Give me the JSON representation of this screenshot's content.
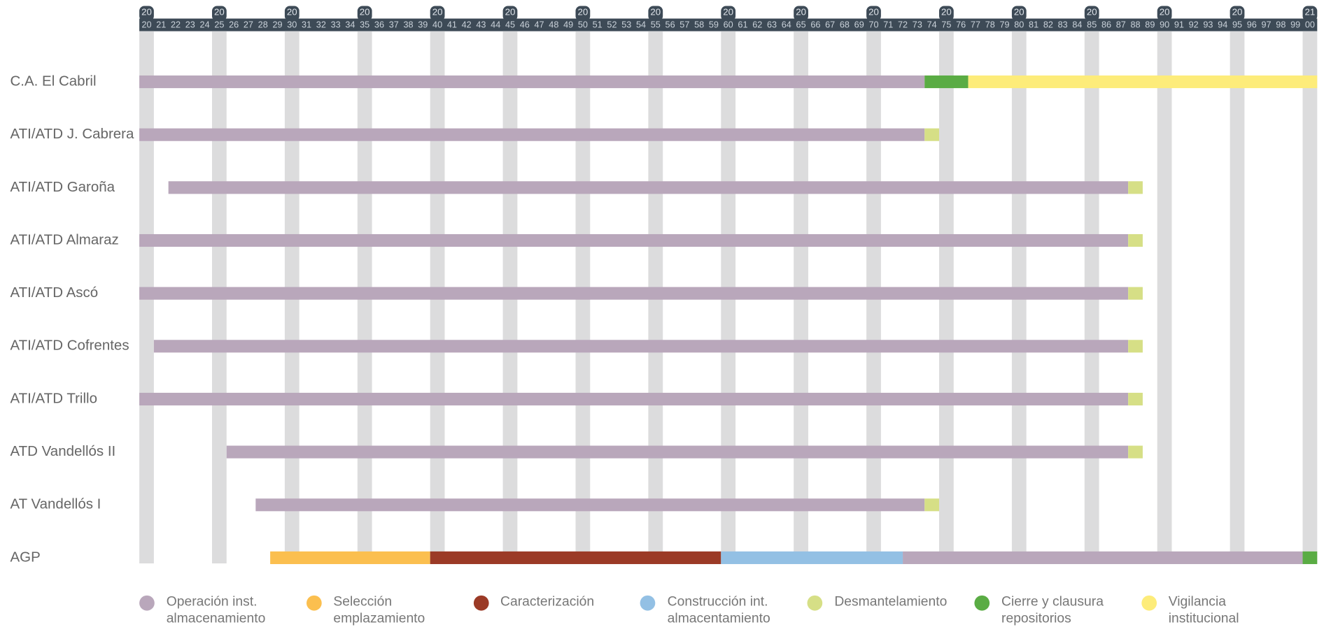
{
  "chart_data": {
    "type": "gantt",
    "categories": [
      "C.A. El Cabril",
      "ATI/ATD J. Cabrera",
      "ATI/ATD Garoña",
      "ATI/ATD Almaraz",
      "ATI/ATD Ascó",
      "ATI/ATD Cofrentes",
      "ATI/ATD Trillo",
      "ATD Vandellós II",
      "AT Vandellós I",
      "AGP"
    ],
    "xlim": [
      2020,
      2101
    ],
    "xticks_major": [
      {
        "value": 2020,
        "label": "20"
      },
      {
        "value": 2025,
        "label": "20"
      },
      {
        "value": 2030,
        "label": "20"
      },
      {
        "value": 2035,
        "label": "20"
      },
      {
        "value": 2040,
        "label": "20"
      },
      {
        "value": 2045,
        "label": "20"
      },
      {
        "value": 2050,
        "label": "20"
      },
      {
        "value": 2055,
        "label": "20"
      },
      {
        "value": 2060,
        "label": "20"
      },
      {
        "value": 2065,
        "label": "20"
      },
      {
        "value": 2070,
        "label": "20"
      },
      {
        "value": 2075,
        "label": "20"
      },
      {
        "value": 2080,
        "label": "20"
      },
      {
        "value": 2085,
        "label": "20"
      },
      {
        "value": 2090,
        "label": "20"
      },
      {
        "value": 2095,
        "label": "20"
      },
      {
        "value": 2100,
        "label": "21"
      }
    ],
    "xticks": [
      {
        "value": 2020,
        "label": "20"
      },
      {
        "value": 2021,
        "label": "21"
      },
      {
        "value": 2022,
        "label": "22"
      },
      {
        "value": 2023,
        "label": "23"
      },
      {
        "value": 2024,
        "label": "24"
      },
      {
        "value": 2025,
        "label": "25"
      },
      {
        "value": 2026,
        "label": "26"
      },
      {
        "value": 2027,
        "label": "27"
      },
      {
        "value": 2028,
        "label": "28"
      },
      {
        "value": 2029,
        "label": "29"
      },
      {
        "value": 2030,
        "label": "30"
      },
      {
        "value": 2031,
        "label": "31"
      },
      {
        "value": 2032,
        "label": "32"
      },
      {
        "value": 2033,
        "label": "33"
      },
      {
        "value": 2034,
        "label": "34"
      },
      {
        "value": 2035,
        "label": "35"
      },
      {
        "value": 2036,
        "label": "36"
      },
      {
        "value": 2037,
        "label": "37"
      },
      {
        "value": 2038,
        "label": "38"
      },
      {
        "value": 2039,
        "label": "39"
      },
      {
        "value": 2040,
        "label": "40"
      },
      {
        "value": 2041,
        "label": "41"
      },
      {
        "value": 2042,
        "label": "42"
      },
      {
        "value": 2043,
        "label": "43"
      },
      {
        "value": 2044,
        "label": "44"
      },
      {
        "value": 2045,
        "label": "45"
      },
      {
        "value": 2046,
        "label": "46"
      },
      {
        "value": 2047,
        "label": "47"
      },
      {
        "value": 2048,
        "label": "48"
      },
      {
        "value": 2049,
        "label": "49"
      },
      {
        "value": 2050,
        "label": "50"
      },
      {
        "value": 2051,
        "label": "51"
      },
      {
        "value": 2052,
        "label": "52"
      },
      {
        "value": 2053,
        "label": "53"
      },
      {
        "value": 2054,
        "label": "54"
      },
      {
        "value": 2055,
        "label": "55"
      },
      {
        "value": 2056,
        "label": "56"
      },
      {
        "value": 2057,
        "label": "57"
      },
      {
        "value": 2058,
        "label": "58"
      },
      {
        "value": 2059,
        "label": "59"
      },
      {
        "value": 2060,
        "label": "60"
      },
      {
        "value": 2061,
        "label": "61"
      },
      {
        "value": 2062,
        "label": "62"
      },
      {
        "value": 2063,
        "label": "63"
      },
      {
        "value": 2064,
        "label": "64"
      },
      {
        "value": 2065,
        "label": "65"
      },
      {
        "value": 2066,
        "label": "66"
      },
      {
        "value": 2067,
        "label": "67"
      },
      {
        "value": 2068,
        "label": "68"
      },
      {
        "value": 2069,
        "label": "69"
      },
      {
        "value": 2070,
        "label": "70"
      },
      {
        "value": 2071,
        "label": "71"
      },
      {
        "value": 2072,
        "label": "72"
      },
      {
        "value": 2073,
        "label": "73"
      },
      {
        "value": 2074,
        "label": "74"
      },
      {
        "value": 2075,
        "label": "75"
      },
      {
        "value": 2076,
        "label": "76"
      },
      {
        "value": 2077,
        "label": "77"
      },
      {
        "value": 2078,
        "label": "78"
      },
      {
        "value": 2079,
        "label": "79"
      },
      {
        "value": 2080,
        "label": "80"
      },
      {
        "value": 2081,
        "label": "81"
      },
      {
        "value": 2082,
        "label": "82"
      },
      {
        "value": 2083,
        "label": "83"
      },
      {
        "value": 2084,
        "label": "84"
      },
      {
        "value": 2085,
        "label": "85"
      },
      {
        "value": 2086,
        "label": "86"
      },
      {
        "value": 2087,
        "label": "87"
      },
      {
        "value": 2088,
        "label": "88"
      },
      {
        "value": 2089,
        "label": "89"
      },
      {
        "value": 2090,
        "label": "90"
      },
      {
        "value": 2091,
        "label": "91"
      },
      {
        "value": 2092,
        "label": "92"
      },
      {
        "value": 2093,
        "label": "93"
      },
      {
        "value": 2094,
        "label": "94"
      },
      {
        "value": 2095,
        "label": "95"
      },
      {
        "value": 2096,
        "label": "96"
      },
      {
        "value": 2097,
        "label": "97"
      },
      {
        "value": 2098,
        "label": "98"
      },
      {
        "value": 2099,
        "label": "99"
      },
      {
        "value": 2100,
        "label": "00"
      }
    ],
    "grid": true,
    "series": [
      {
        "name": "Operación inst. almacenamiento",
        "color": "#b9a7bb",
        "values": [
          [
            2020,
            2074
          ],
          [
            2020,
            2074
          ],
          [
            2022,
            2088
          ],
          [
            2020,
            2088
          ],
          [
            2020,
            2088
          ],
          [
            2021,
            2088
          ],
          [
            2020,
            2088
          ],
          [
            2026,
            2088
          ],
          [
            2028,
            2074
          ],
          [
            2072.5,
            2100
          ]
        ]
      },
      {
        "name": "Selección emplazamiento",
        "color": "#fbbf4f",
        "values": [
          null,
          null,
          null,
          null,
          null,
          null,
          null,
          null,
          null,
          [
            2029,
            2040
          ]
        ]
      },
      {
        "name": "Caracterización",
        "color": "#9b3a26",
        "values": [
          null,
          null,
          null,
          null,
          null,
          null,
          null,
          null,
          null,
          [
            2040,
            2060
          ]
        ]
      },
      {
        "name": "Construcción int. almacentamiento",
        "color": "#93c0e4",
        "values": [
          null,
          null,
          null,
          null,
          null,
          null,
          null,
          null,
          null,
          [
            2060,
            2072.5
          ]
        ]
      },
      {
        "name": "Desmantelamiento",
        "color": "#d6df86",
        "values": [
          null,
          [
            2074,
            2075
          ],
          [
            2088,
            2089
          ],
          [
            2088,
            2089
          ],
          [
            2088,
            2089
          ],
          [
            2088,
            2089
          ],
          [
            2088,
            2089
          ],
          [
            2088,
            2089
          ],
          [
            2074,
            2075
          ],
          null
        ]
      },
      {
        "name": "Cierre y clausura repositorios",
        "color": "#5aac44",
        "values": [
          [
            2074,
            2077
          ],
          null,
          null,
          null,
          null,
          null,
          null,
          null,
          null,
          [
            2100,
            2101
          ]
        ]
      },
      {
        "name": "Vigilancia institucional",
        "color": "#fdec7a",
        "values": [
          [
            2077,
            2101
          ],
          null,
          null,
          null,
          null,
          null,
          null,
          null,
          null,
          null
        ]
      }
    ]
  }
}
